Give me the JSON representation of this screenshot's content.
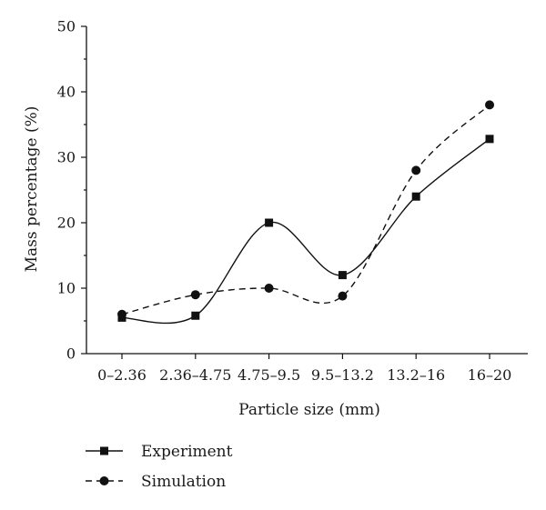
{
  "chart_data": {
    "type": "line",
    "title": "",
    "xlabel": "Particle size (mm)",
    "ylabel": "Mass percentage (%)",
    "categories": [
      "0–2.36",
      "2.36–4.75",
      "4.75–9.5",
      "9.5–13.2",
      "13.2–16",
      "16–20"
    ],
    "ylim": [
      0,
      50
    ],
    "yticks": [
      "0",
      "10",
      "20",
      "30",
      "40",
      "50"
    ],
    "grid": false,
    "legend_position": "bottom-left",
    "series": [
      {
        "name": "Experiment",
        "values": [
          5.5,
          5.8,
          20.0,
          12.0,
          24.0,
          32.8
        ],
        "marker": "square",
        "line_style": "solid",
        "color": "#111111"
      },
      {
        "name": "Simulation",
        "values": [
          6.0,
          9.0,
          10.0,
          8.8,
          28.0,
          38.0
        ],
        "marker": "circle",
        "line_style": "dashed",
        "color": "#111111"
      }
    ]
  }
}
